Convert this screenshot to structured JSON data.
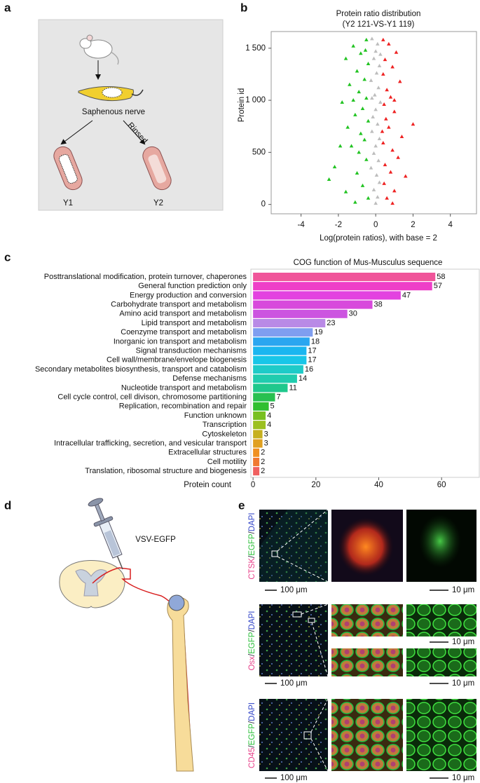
{
  "panel_letters": [
    "a",
    "b",
    "c",
    "d",
    "e"
  ],
  "panel_a": {
    "nerve_label": "Saphenous nerve",
    "rinse_label": "Rinsed",
    "left_label": "Y1",
    "right_label": "Y2"
  },
  "panel_d": {
    "virus_label": "VSV-EGFP"
  },
  "panel_e": {
    "rows": [
      {
        "stain": [
          "CTSK",
          "/",
          "EGFP",
          "/",
          "DAPI"
        ],
        "scale_large": "100 μm",
        "scale_small": [
          "10 μm"
        ]
      },
      {
        "stain": [
          "Osx",
          "/",
          "EGFP",
          "/",
          "DAPI"
        ],
        "scale_large": "100 μm",
        "scale_small": [
          "10 μm",
          "10 μm"
        ]
      },
      {
        "stain": [
          "CD45",
          "/",
          "EGFP",
          "/",
          "DAPI"
        ],
        "scale_large": "100 μm",
        "scale_small": [
          "10 μm"
        ]
      }
    ]
  },
  "chart_data": [
    {
      "type": "scatter",
      "title": "Protein ratio distribution",
      "subtitle": "(Y2 121-VS-Y1 119)",
      "x_label": "Log(protein ratios), with base = 2",
      "y_label": "Protein id",
      "xlim": [
        -5.6,
        5.4
      ],
      "ylim": [
        -90,
        1660
      ],
      "xticks": [
        -4,
        -2,
        0,
        2,
        4
      ],
      "yticks": [
        0,
        500,
        {
          "value": 1000,
          "label": "1 000"
        },
        {
          "value": 1500,
          "label": "1 500"
        }
      ],
      "series": [
        {
          "color": "#22c322",
          "x": [
            -0.5,
            -1.2,
            -0.8,
            -1.6,
            -0.4,
            -1.0,
            -0.6,
            -1.4,
            -0.9,
            -0.5,
            -1.8,
            -0.7,
            -1.1,
            -0.4,
            -1.5,
            -0.8,
            -0.6,
            -1.3,
            -0.9,
            -2.2,
            -0.5,
            -1.0,
            -2.5,
            -0.7,
            -1.6,
            -0.4,
            -1.1,
            -1.9,
            -1.2,
            -0.55
          ],
          "values": [
            1580,
            1520,
            1450,
            1400,
            1350,
            1280,
            1200,
            1150,
            1080,
            1020,
            980,
            920,
            860,
            800,
            740,
            680,
            620,
            560,
            500,
            360,
            430,
            300,
            240,
            180,
            120,
            60,
            20,
            560,
            1000,
            1480
          ]
        },
        {
          "color": "#bdbdbd",
          "x": [
            -0.2,
            0.1,
            0.0,
            -0.1,
            0.2,
            0.05,
            -0.25,
            0.15,
            -0.05,
            0.25,
            0.0,
            -0.15,
            0.1,
            -0.2,
            0.2,
            0.0,
            -0.1,
            0.15,
            -0.25,
            0.05,
            0.2,
            -0.1,
            0.1,
            0.0,
            -0.2,
            0.25
          ],
          "values": [
            1590,
            1540,
            1470,
            1400,
            1330,
            1260,
            1190,
            1120,
            1050,
            980,
            910,
            840,
            770,
            700,
            630,
            560,
            490,
            420,
            350,
            280,
            210,
            140,
            70,
            10,
            1020,
            1440
          ]
        },
        {
          "color": "#ee2222",
          "x": [
            0.4,
            0.7,
            1.1,
            0.5,
            0.9,
            0.4,
            1.3,
            0.6,
            0.8,
            0.45,
            1.0,
            0.55,
            2.0,
            0.7,
            1.4,
            0.4,
            0.9,
            1.2,
            0.5,
            0.8,
            1.6,
            0.45,
            1.0,
            0.6,
            0.9,
            1.0,
            0.35
          ],
          "values": [
            1580,
            1540,
            1460,
            1390,
            1320,
            1250,
            1180,
            1100,
            1030,
            960,
            890,
            820,
            770,
            740,
            650,
            590,
            520,
            450,
            380,
            310,
            270,
            200,
            130,
            60,
            10,
            1000,
            700
          ]
        }
      ]
    },
    {
      "type": "bar",
      "orientation": "horizontal",
      "title": "COG function of Mus-Musculus sequence",
      "x_label": "Protein count",
      "xlim": [
        -0.7,
        72
      ],
      "xticks": [
        0,
        20,
        40,
        60
      ],
      "categories": [
        "Posttranslational modification, protein turnover, chaperones",
        "General function prediction only",
        "Energy production and conversion",
        "Carbohydrate transport and metabolism",
        "Amino acid transport and metabolism",
        "Lipid transport and metabolism",
        "Coenzyme transport and metabolism",
        "Inorganic ion transport and metabolism",
        "Signal transduction mechanisms",
        "Cell wall/membrane/envelope biogenesis",
        "Secondary metabolites biosynthesis, transport and catabolism",
        "Defense mechanisms",
        "Nucleotide transport and metabolism",
        "Cell cycle control, cell divison, chromosome partitioning",
        "Replication, recombination and repair",
        "Function unknown",
        "Transcription",
        "Cytoskeleton",
        "Intracellular trafficking, secretion, and vesicular transport",
        "Extracellular structures",
        "Cell motility",
        "Translation, ribosomal structure and biogenesis"
      ],
      "values": [
        58,
        57,
        47,
        38,
        30,
        23,
        19,
        18,
        17,
        17,
        16,
        14,
        11,
        7,
        5,
        4,
        4,
        3,
        3,
        2,
        2,
        2
      ],
      "colors": [
        "#f0559a",
        "#ee3fc8",
        "#e342e0",
        "#d84adc",
        "#cc55e0",
        "#b98ae6",
        "#7f9ef0",
        "#2aa6f0",
        "#1ab6f0",
        "#18c6e8",
        "#1ecbc8",
        "#20ccae",
        "#1fc88c",
        "#28c050",
        "#30bf30",
        "#78c020",
        "#9cc020",
        "#c6b020",
        "#e0a020",
        "#f09020",
        "#f07830",
        "#f06060"
      ]
    }
  ]
}
